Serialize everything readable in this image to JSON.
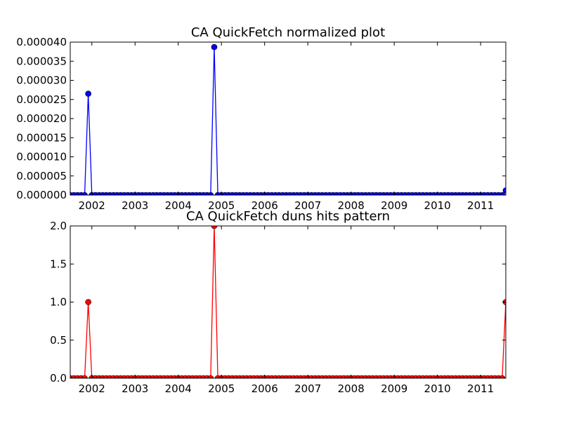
{
  "chart_data": [
    {
      "type": "line",
      "title": "CA QuickFetch normalized plot",
      "xlabel": "",
      "ylabel": "",
      "xlim": [
        "2001-07",
        "2011-08"
      ],
      "ylim": [
        0,
        4e-05
      ],
      "x_ticks": [
        "2002",
        "2003",
        "2004",
        "2005",
        "2006",
        "2007",
        "2008",
        "2009",
        "2010",
        "2011"
      ],
      "y_ticks": [
        "0.000000",
        "0.000005",
        "0.000010",
        "0.000015",
        "0.000020",
        "0.000025",
        "0.000030",
        "0.000035",
        "0.000040"
      ],
      "grid": false,
      "marker": "circle",
      "colors": {
        "line": "#0000ff",
        "marker_fill": "#0000ff",
        "marker_edge": "#000000"
      },
      "series": [
        {
          "start": "2001-07",
          "end": "2011-08",
          "frequency": "monthly",
          "baseline": 0,
          "points": [
            {
              "x": "2001-12",
              "y": 2.65e-05
            },
            {
              "x": "2004-11",
              "y": 3.87e-05
            },
            {
              "x": "2011-08",
              "y": 1.2e-06
            }
          ]
        }
      ]
    },
    {
      "type": "line",
      "title": "CA QuickFetch duns hits pattern",
      "xlabel": "",
      "ylabel": "",
      "xlim": [
        "2001-07",
        "2011-08"
      ],
      "ylim": [
        0,
        2.0
      ],
      "x_ticks": [
        "2002",
        "2003",
        "2004",
        "2005",
        "2006",
        "2007",
        "2008",
        "2009",
        "2010",
        "2011"
      ],
      "y_ticks": [
        "0.0",
        "0.5",
        "1.0",
        "1.5",
        "2.0"
      ],
      "grid": false,
      "marker": "circle",
      "colors": {
        "line": "#ff0000",
        "marker_fill": "#ff0000",
        "marker_edge": "#000000"
      },
      "series": [
        {
          "start": "2001-07",
          "end": "2011-08",
          "frequency": "monthly",
          "baseline": 0,
          "points": [
            {
              "x": "2001-12",
              "y": 1
            },
            {
              "x": "2004-11",
              "y": 2
            },
            {
              "x": "2011-08",
              "y": 1
            }
          ]
        }
      ]
    }
  ]
}
